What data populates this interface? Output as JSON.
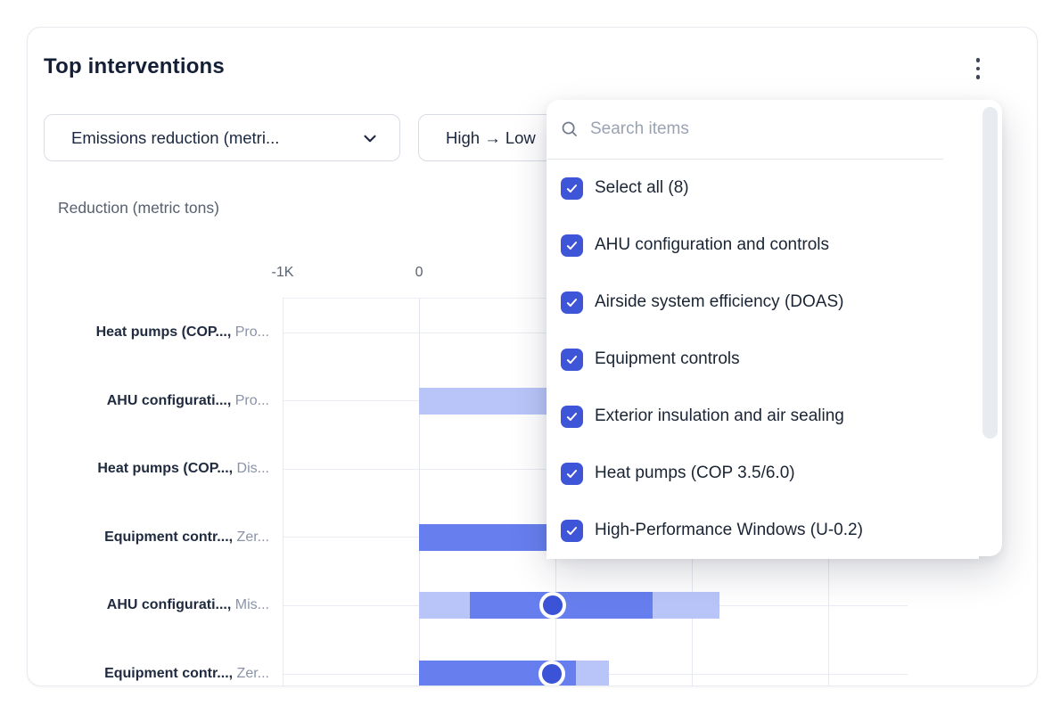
{
  "card": {
    "title": "Top interventions",
    "menu_icon": "kebab-vertical"
  },
  "filters": {
    "metric_dropdown": {
      "value": "Emissions reduction (metri...",
      "icon": "chevron-down"
    },
    "sort_dropdown": {
      "value": "High → Low"
    }
  },
  "chart_data": {
    "type": "bar",
    "orientation": "horizontal",
    "title": "Reduction (metric tons)",
    "unit": "metric tons",
    "xlim": [
      -1000,
      3580
    ],
    "grid": true,
    "gridline_values": [
      -1000,
      0,
      1000,
      2000,
      3000
    ],
    "ticks": [
      {
        "value": -1000,
        "label": "-1K"
      },
      {
        "value": 0,
        "label": "0"
      }
    ],
    "legend": "none",
    "rows": [
      {
        "label": "Heat pumps (COP...,",
        "sublabel": "Pro...",
        "segments": [],
        "marker": null
      },
      {
        "label": "AHU configurati...,",
        "sublabel": "Pro...",
        "segments": [
          {
            "from": 0,
            "to": 1500,
            "tone": "light",
            "clipped_by_overlay": true
          }
        ],
        "marker": null
      },
      {
        "label": "Heat pumps (COP...,",
        "sublabel": "Dis...",
        "segments": [],
        "marker": null
      },
      {
        "label": "Equipment contr...,",
        "sublabel": "Zer...",
        "segments": [
          {
            "from": 0,
            "to": 1500,
            "tone": "dark",
            "clipped_by_overlay": true
          }
        ],
        "marker": null
      },
      {
        "label": "AHU configurati...,",
        "sublabel": "Mis...",
        "segments": [
          {
            "from": 0,
            "to": 370,
            "tone": "light"
          },
          {
            "from": 370,
            "to": 1710,
            "tone": "dark"
          },
          {
            "from": 1710,
            "to": 2200,
            "tone": "light"
          }
        ],
        "marker": 980
      },
      {
        "label": "Equipment contr...,",
        "sublabel": "Zer...",
        "segments": [
          {
            "from": 0,
            "to": 1150,
            "tone": "dark"
          },
          {
            "from": 1150,
            "to": 1390,
            "tone": "light"
          }
        ],
        "marker": 970
      }
    ]
  },
  "dropdown": {
    "search_placeholder": "Search items",
    "search_icon": "magnifier",
    "items": [
      {
        "label": "Select all (8)",
        "checked": true
      },
      {
        "label": "AHU configuration and controls",
        "checked": true
      },
      {
        "label": "Airside system efficiency (DOAS)",
        "checked": true
      },
      {
        "label": "Equipment controls",
        "checked": true
      },
      {
        "label": "Exterior insulation and air sealing",
        "checked": true
      },
      {
        "label": "Heat pumps (COP 3.5/6.0)",
        "checked": true
      },
      {
        "label": "High-Performance Windows (U-0.2)",
        "checked": true
      }
    ]
  },
  "colors": {
    "accent_checkbox": "#3e55d8",
    "bar_dark": "#677fee",
    "bar_light": "#b9c5f8",
    "marker_fill": "#3a53d7",
    "gridline": "#e6e9f0",
    "title_text": "#141f35",
    "muted_text": "#8a93a7"
  }
}
